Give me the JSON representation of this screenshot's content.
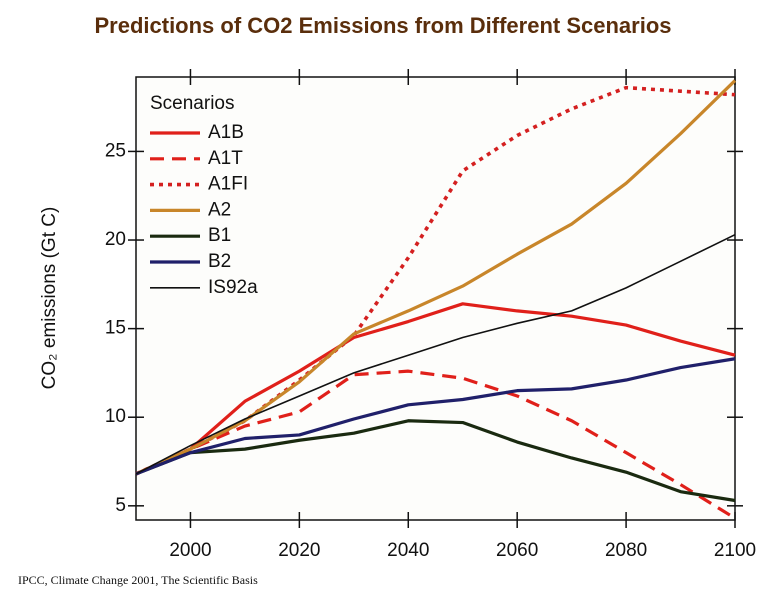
{
  "chart_data": {
    "type": "line",
    "title": "Predictions  of CO2 Emissions from Different Scenarios",
    "ylabel": "CO₂ emissions (Gt C)",
    "legend_title": "Scenarios",
    "source": "IPCC, Climate Change 2001, The Scientific Basis",
    "x": [
      1990,
      2000,
      2010,
      2020,
      2030,
      2040,
      2050,
      2060,
      2070,
      2080,
      2090,
      2100
    ],
    "xlim": [
      1990,
      2100
    ],
    "xticks": [
      2000,
      2020,
      2040,
      2060,
      2080,
      2100
    ],
    "ylim": [
      4.2,
      29.2
    ],
    "yticks": [
      5,
      10,
      15,
      20,
      25
    ],
    "legend": "upper left",
    "series": [
      {
        "name": "A1B",
        "color": "#e0201a",
        "linestyle": "solid",
        "values": [
          6.8,
          8.2,
          10.9,
          12.6,
          14.5,
          15.4,
          16.4,
          16.0,
          15.7,
          15.2,
          14.3,
          13.5
        ]
      },
      {
        "name": "A1T",
        "color": "#e0201a",
        "linestyle": "dashed",
        "values": [
          6.8,
          8.2,
          9.5,
          10.3,
          12.4,
          12.6,
          12.2,
          11.2,
          9.8,
          8.0,
          6.2,
          4.3
        ]
      },
      {
        "name": "A1FI",
        "color": "#d42020",
        "linestyle": "dotted",
        "values": [
          6.8,
          8.2,
          9.8,
          12.1,
          14.6,
          19.0,
          23.9,
          25.9,
          27.4,
          28.6,
          28.4,
          28.2
        ]
      },
      {
        "name": "A2",
        "color": "#c8862a",
        "linestyle": "solid",
        "values": [
          6.8,
          8.2,
          9.8,
          12.0,
          14.7,
          16.0,
          17.4,
          19.2,
          20.9,
          23.2,
          26.0,
          29.0
        ]
      },
      {
        "name": "B1",
        "color": "#1a2a10",
        "linestyle": "solid",
        "values": [
          6.8,
          8.0,
          8.2,
          8.7,
          9.1,
          9.8,
          9.7,
          8.6,
          7.7,
          6.9,
          5.8,
          5.3
        ]
      },
      {
        "name": "B2",
        "color": "#20206a",
        "linestyle": "solid",
        "values": [
          6.8,
          8.0,
          8.8,
          9.0,
          9.9,
          10.7,
          11.0,
          11.5,
          11.6,
          12.1,
          12.8,
          13.3
        ]
      },
      {
        "name": "IS92a",
        "color": "#111111",
        "linestyle": "thin",
        "values": [
          6.8,
          8.4,
          9.9,
          11.2,
          12.5,
          13.5,
          14.5,
          15.3,
          16.0,
          17.3,
          18.8,
          20.3
        ]
      }
    ]
  }
}
